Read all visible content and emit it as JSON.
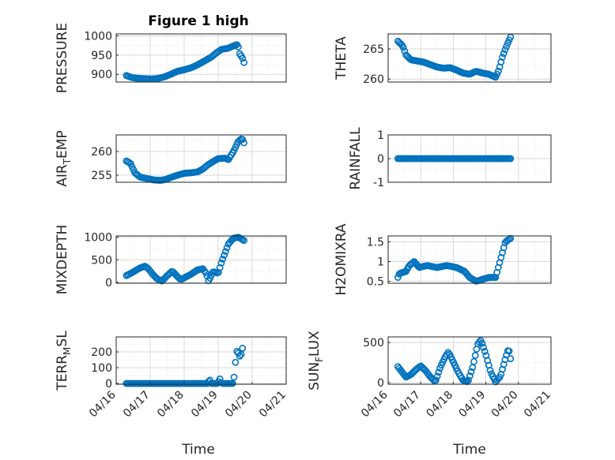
{
  "colors": {
    "marker": "#0072BD",
    "axis": "#262626",
    "grid": "#d9d9d9",
    "background": "#ffffff"
  },
  "chart_data": [
    {
      "type": "scatter",
      "panel": "pressure",
      "title": "Figure 1 high",
      "ylabel": "PRESSURE",
      "xlabel": "",
      "xlim": [
        "04/16",
        "04/21"
      ],
      "ylim": [
        880,
        1005
      ],
      "yticks": [
        900,
        950,
        1000
      ],
      "ytick_labels": [
        "900",
        "950",
        "1000"
      ],
      "xticks_shown": false,
      "grid": true,
      "anchors": [
        [
          0.3,
          897
        ],
        [
          0.45,
          892
        ],
        [
          0.6,
          890
        ],
        [
          0.8,
          889
        ],
        [
          1.0,
          888
        ],
        [
          1.2,
          889
        ],
        [
          1.4,
          893
        ],
        [
          1.6,
          900
        ],
        [
          1.8,
          908
        ],
        [
          2.0,
          912
        ],
        [
          2.2,
          917
        ],
        [
          2.4,
          925
        ],
        [
          2.6,
          935
        ],
        [
          2.8,
          945
        ],
        [
          2.95,
          956
        ],
        [
          3.1,
          965
        ],
        [
          3.3,
          968
        ],
        [
          3.45,
          974
        ],
        [
          3.58,
          978
        ],
        [
          3.62,
          955
        ],
        [
          3.7,
          945
        ],
        [
          3.75,
          935
        ],
        [
          3.78,
          920
        ]
      ]
    },
    {
      "type": "scatter",
      "panel": "theta",
      "title": "",
      "ylabel": "THETA",
      "xlabel": "",
      "xlim": [
        "04/16",
        "04/21"
      ],
      "ylim": [
        259.5,
        267.5
      ],
      "yticks": [
        260,
        265
      ],
      "ytick_labels": [
        "260",
        "265"
      ],
      "xticks_shown": false,
      "grid": true,
      "anchors": [
        [
          0.3,
          266.3
        ],
        [
          0.45,
          265.5
        ],
        [
          0.55,
          264.0
        ],
        [
          0.7,
          263.2
        ],
        [
          0.9,
          263.0
        ],
        [
          1.1,
          262.8
        ],
        [
          1.3,
          262.4
        ],
        [
          1.5,
          262.0
        ],
        [
          1.7,
          261.8
        ],
        [
          1.9,
          261.9
        ],
        [
          2.1,
          261.5
        ],
        [
          2.3,
          261.0
        ],
        [
          2.5,
          260.8
        ],
        [
          2.7,
          261.3
        ],
        [
          2.9,
          261.0
        ],
        [
          3.1,
          260.8
        ],
        [
          3.3,
          260.3
        ],
        [
          3.4,
          261.5
        ],
        [
          3.5,
          263.5
        ],
        [
          3.6,
          265.0
        ],
        [
          3.7,
          266.3
        ],
        [
          3.78,
          267.2
        ]
      ]
    },
    {
      "type": "scatter",
      "panel": "air_temp",
      "title": "",
      "ylabel_parts": [
        "AIR",
        "T",
        "EMP"
      ],
      "xlabel": "",
      "xlim": [
        "04/16",
        "04/21"
      ],
      "ylim": [
        253.5,
        263.5
      ],
      "yticks": [
        255,
        260
      ],
      "ytick_labels": [
        "255",
        "260"
      ],
      "xticks_shown": false,
      "grid": true,
      "anchors": [
        [
          0.3,
          258.0
        ],
        [
          0.42,
          257.5
        ],
        [
          0.55,
          255.5
        ],
        [
          0.7,
          254.6
        ],
        [
          0.9,
          254.3
        ],
        [
          1.1,
          254.0
        ],
        [
          1.3,
          253.9
        ],
        [
          1.45,
          254.1
        ],
        [
          1.6,
          254.5
        ],
        [
          1.8,
          255.0
        ],
        [
          2.0,
          255.4
        ],
        [
          2.2,
          255.5
        ],
        [
          2.4,
          255.7
        ],
        [
          2.55,
          256.3
        ],
        [
          2.7,
          257.2
        ],
        [
          2.9,
          258.1
        ],
        [
          3.0,
          258.5
        ],
        [
          3.2,
          258.6
        ],
        [
          3.3,
          258.3
        ],
        [
          3.45,
          260.0
        ],
        [
          3.58,
          262.0
        ],
        [
          3.7,
          262.8
        ],
        [
          3.78,
          261.5
        ]
      ]
    },
    {
      "type": "scatter",
      "panel": "rainfall",
      "title": "",
      "ylabel": "RAINFALL",
      "xlabel": "",
      "xlim": [
        "04/16",
        "04/21"
      ],
      "ylim": [
        -1,
        1
      ],
      "yticks": [
        -1,
        0,
        1
      ],
      "ytick_labels": [
        "-1",
        "0",
        "1"
      ],
      "xticks_shown": false,
      "grid": true,
      "anchors": [
        [
          0.3,
          0
        ],
        [
          3.78,
          0
        ]
      ]
    },
    {
      "type": "scatter",
      "panel": "mixdepth",
      "title": "",
      "ylabel": "MIXDEPTH",
      "xlabel": "",
      "xlim": [
        "04/16",
        "04/21"
      ],
      "ylim": [
        -20,
        1030
      ],
      "yticks": [
        0,
        500,
        1000
      ],
      "ytick_labels": [
        "0",
        "500",
        "1000"
      ],
      "xticks_shown": false,
      "grid": true,
      "anchors": [
        [
          0.3,
          150
        ],
        [
          0.5,
          230
        ],
        [
          0.7,
          320
        ],
        [
          0.85,
          360
        ],
        [
          0.95,
          300
        ],
        [
          1.05,
          200
        ],
        [
          1.2,
          80
        ],
        [
          1.35,
          30
        ],
        [
          1.5,
          150
        ],
        [
          1.65,
          250
        ],
        [
          1.8,
          130
        ],
        [
          1.9,
          60
        ],
        [
          2.05,
          120
        ],
        [
          2.2,
          180
        ],
        [
          2.4,
          280
        ],
        [
          2.55,
          300
        ],
        [
          2.65,
          200
        ],
        [
          2.72,
          30
        ],
        [
          2.85,
          240
        ],
        [
          3.0,
          200
        ],
        [
          3.1,
          450
        ],
        [
          3.2,
          650
        ],
        [
          3.3,
          850
        ],
        [
          3.45,
          980
        ],
        [
          3.6,
          1000
        ],
        [
          3.78,
          920
        ]
      ]
    },
    {
      "type": "scatter",
      "panel": "h2omixra",
      "title": "",
      "ylabel": "H2OMIXRA",
      "xlabel": "",
      "xlim": [
        "04/16",
        "04/21"
      ],
      "ylim": [
        0.45,
        1.65
      ],
      "yticks": [
        0.5,
        1,
        1.5
      ],
      "ytick_labels": [
        "0.5",
        "1",
        "1.5"
      ],
      "xticks_shown": false,
      "grid": true,
      "anchors": [
        [
          0.3,
          0.6
        ],
        [
          0.35,
          0.7
        ],
        [
          0.55,
          0.75
        ],
        [
          0.65,
          0.9
        ],
        [
          0.8,
          1.0
        ],
        [
          0.95,
          0.85
        ],
        [
          1.2,
          0.9
        ],
        [
          1.5,
          0.85
        ],
        [
          1.8,
          0.9
        ],
        [
          2.1,
          0.85
        ],
        [
          2.35,
          0.75
        ],
        [
          2.5,
          0.6
        ],
        [
          2.7,
          0.5
        ],
        [
          2.9,
          0.55
        ],
        [
          3.1,
          0.6
        ],
        [
          3.3,
          0.6
        ],
        [
          3.4,
          0.9
        ],
        [
          3.5,
          1.2
        ],
        [
          3.6,
          1.5
        ],
        [
          3.78,
          1.6
        ]
      ]
    },
    {
      "type": "scatter",
      "panel": "terr_msl",
      "title": "",
      "ylabel_parts": [
        "TERR",
        "M",
        "SL"
      ],
      "xlabel": "Time",
      "xlim": [
        "04/16",
        "04/21"
      ],
      "ylim": [
        -5,
        295
      ],
      "yticks": [
        0,
        100,
        200
      ],
      "ytick_labels": [
        "0",
        "100",
        "200"
      ],
      "xtick_labels": [
        "04/16",
        "04/17",
        "04/18",
        "04/19",
        "04/20",
        "04/21"
      ],
      "grid": true,
      "anchors": [
        [
          0.3,
          0
        ],
        [
          2.7,
          0
        ],
        [
          2.74,
          30
        ],
        [
          2.8,
          0
        ],
        [
          3.0,
          0
        ],
        [
          3.03,
          40
        ],
        [
          3.1,
          0
        ],
        [
          3.45,
          0
        ],
        [
          3.5,
          120
        ],
        [
          3.56,
          220
        ],
        [
          3.62,
          170
        ],
        [
          3.7,
          190
        ],
        [
          3.75,
          290
        ]
      ]
    },
    {
      "type": "scatter",
      "panel": "sun_flux",
      "title": "",
      "ylabel_parts": [
        "SUN",
        "F",
        "LUX"
      ],
      "xlabel": "Time",
      "xlim": [
        "04/16",
        "04/21"
      ],
      "ylim": [
        -20,
        570
      ],
      "yticks": [
        0,
        500
      ],
      "ytick_labels": [
        "0",
        "500"
      ],
      "xtick_labels": [
        "04/16",
        "04/17",
        "04/18",
        "04/19",
        "04/20",
        "04/21"
      ],
      "grid": true,
      "anchors": [
        [
          0.3,
          200
        ],
        [
          0.45,
          120
        ],
        [
          0.55,
          70
        ],
        [
          0.7,
          100
        ],
        [
          0.85,
          160
        ],
        [
          1.0,
          210
        ],
        [
          1.15,
          150
        ],
        [
          1.3,
          70
        ],
        [
          1.45,
          10
        ],
        [
          1.6,
          190
        ],
        [
          1.75,
          320
        ],
        [
          1.85,
          380
        ],
        [
          2.0,
          260
        ],
        [
          2.15,
          130
        ],
        [
          2.3,
          30
        ],
        [
          2.45,
          10
        ],
        [
          2.6,
          200
        ],
        [
          2.75,
          480
        ],
        [
          2.85,
          530
        ],
        [
          3.0,
          350
        ],
        [
          3.15,
          130
        ],
        [
          3.3,
          10
        ],
        [
          3.45,
          80
        ],
        [
          3.6,
          300
        ],
        [
          3.7,
          430
        ],
        [
          3.78,
          250
        ]
      ]
    }
  ]
}
